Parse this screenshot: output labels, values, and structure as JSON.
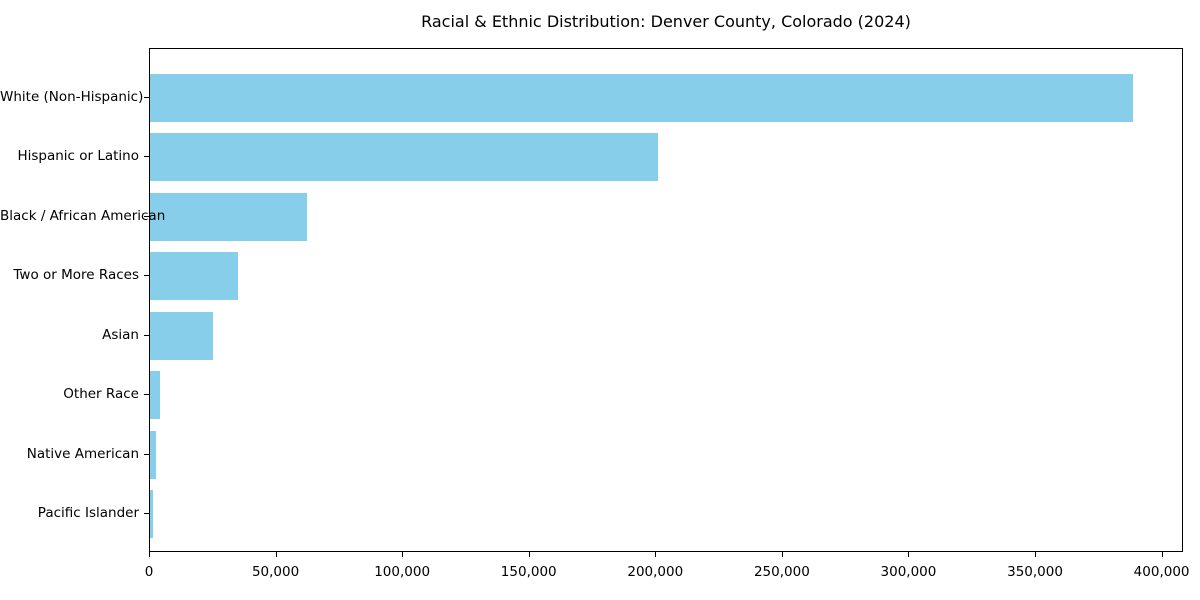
{
  "title": "Racial & Ethnic Distribution: Denver County, Colorado (2024)",
  "colors": {
    "bar": "#87CEEB",
    "axis": "#000000",
    "text": "#000000",
    "background": "#ffffff"
  },
  "chart_data": {
    "type": "bar",
    "orientation": "horizontal",
    "title": "Racial & Ethnic Distribution: Denver County, Colorado (2024)",
    "xlabel": "",
    "ylabel": "",
    "categories": [
      "White (Non-Hispanic)",
      "Hispanic or Latino",
      "Black / African American",
      "Two or More Races",
      "Asian",
      "Other Race",
      "Native American",
      "Pacific Islander"
    ],
    "values": [
      389000,
      201000,
      62000,
      35000,
      25000,
      4000,
      2200,
      1100
    ],
    "xlim": [
      0,
      408450
    ],
    "x_tick_values": [
      0,
      50000,
      100000,
      150000,
      200000,
      250000,
      300000,
      350000,
      400000
    ],
    "x_tick_labels": [
      "0",
      "50,000",
      "100,000",
      "150,000",
      "200,000",
      "250,000",
      "300,000",
      "350,000",
      "400,000"
    ],
    "bar_color": "#87CEEB",
    "grid": false,
    "legend": false
  }
}
